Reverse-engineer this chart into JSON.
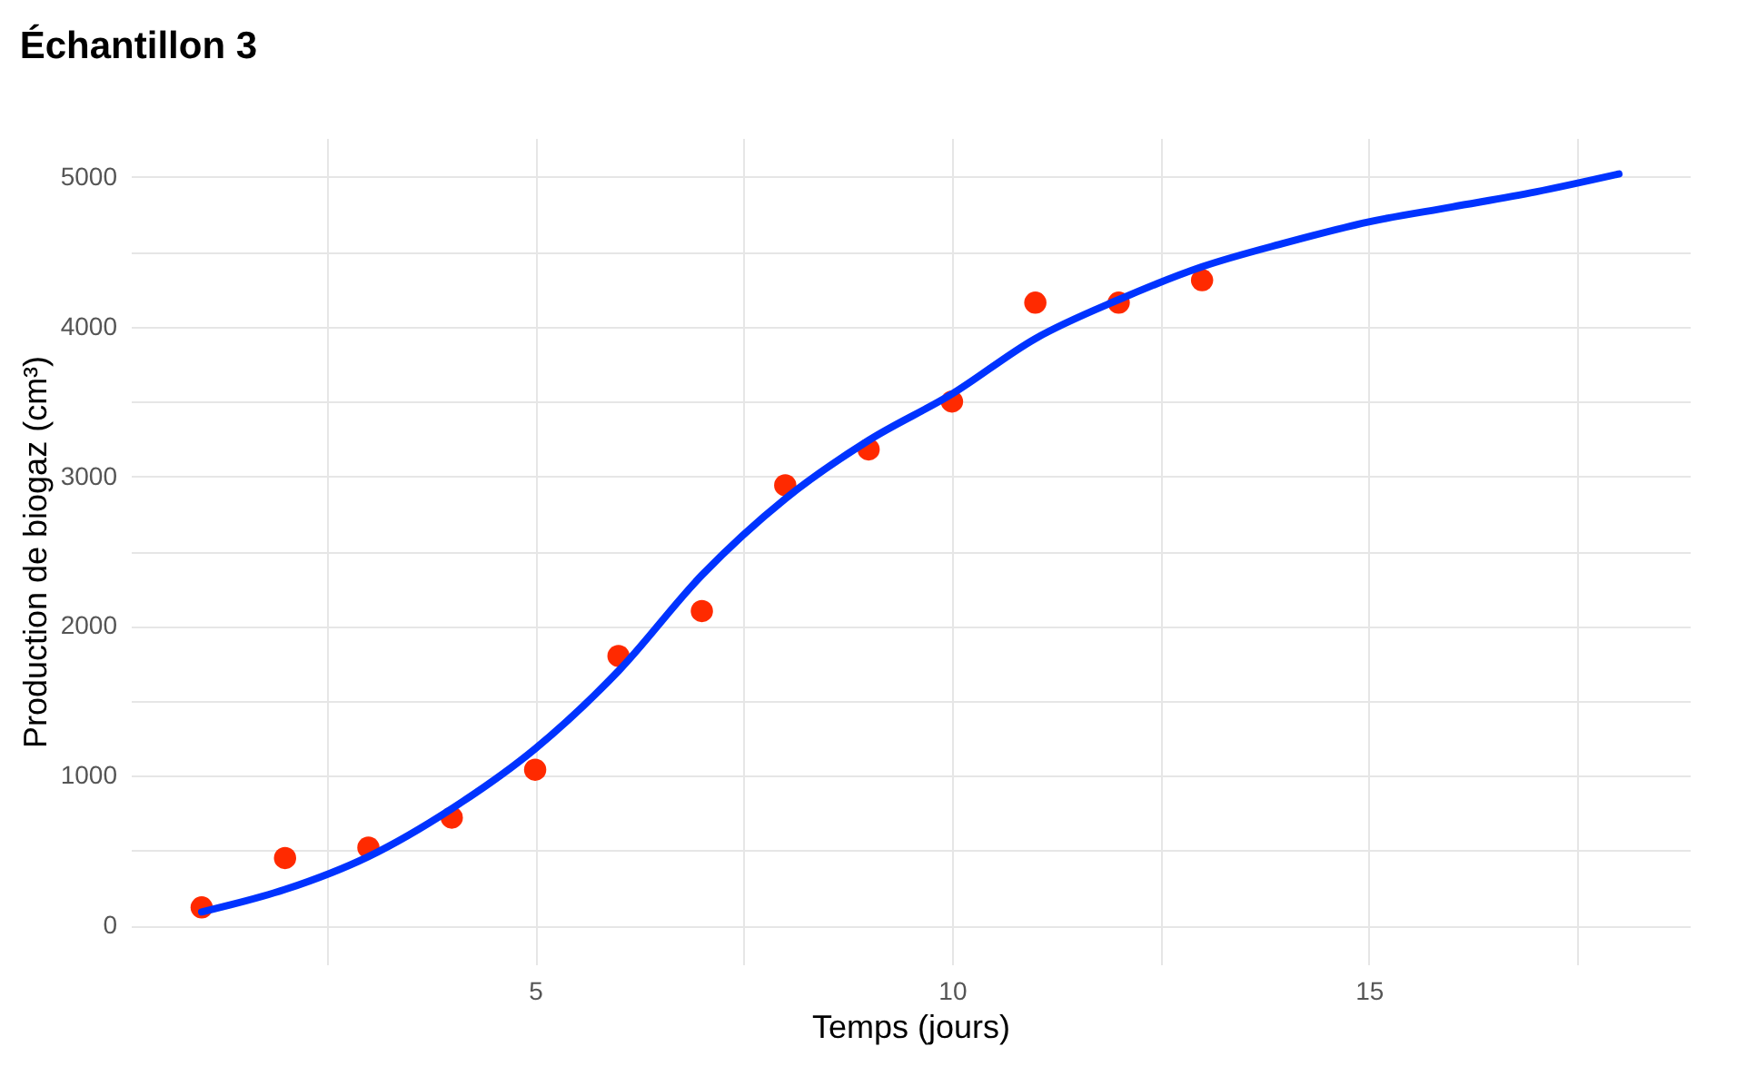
{
  "chart_data": {
    "type": "scatter",
    "title": "Échantillon 3",
    "xlabel": "Temps (jours)",
    "ylabel": "Production de biogaz (cm³)",
    "x": [
      1,
      2,
      3,
      4,
      5,
      6,
      7,
      8,
      9,
      10,
      11,
      12,
      13
    ],
    "series": [
      {
        "color": "#ff2a00",
        "marker": "circle",
        "values": [
          120,
          450,
          520,
          720,
          1040,
          1800,
          2100,
          2940,
          3180,
          3500,
          4160,
          4160,
          4310
        ]
      },
      {
        "type": "line",
        "color": "#0033ff",
        "marker": "none",
        "line_style": "solid",
        "x": [
          1,
          2,
          3,
          4,
          5,
          6,
          7,
          8,
          9,
          10,
          11,
          12,
          13,
          14,
          15,
          16,
          17,
          18
        ],
        "values": [
          90,
          240,
          460,
          780,
          1180,
          1700,
          2340,
          2850,
          3240,
          3550,
          3920,
          4180,
          4400,
          4560,
          4700,
          4800,
          4900,
          5020
        ]
      }
    ],
    "xlim": [
      0.15,
      18.85
    ],
    "ylim": [
      -260,
      5260
    ],
    "xticks": [
      {
        "value": 2.5,
        "label": null
      },
      5,
      {
        "value": 7.5,
        "label": null
      },
      10,
      {
        "value": 12.5,
        "label": null
      },
      15,
      {
        "value": 17.5,
        "label": null
      }
    ],
    "yticks": [
      0,
      {
        "value": 500,
        "label": null
      },
      1000,
      {
        "value": 1500,
        "label": null
      },
      2000,
      {
        "value": 2500,
        "label": null
      },
      3000,
      {
        "value": 3500,
        "label": null
      },
      4000,
      {
        "value": 4500,
        "label": null
      },
      5000
    ],
    "grid": true
  }
}
